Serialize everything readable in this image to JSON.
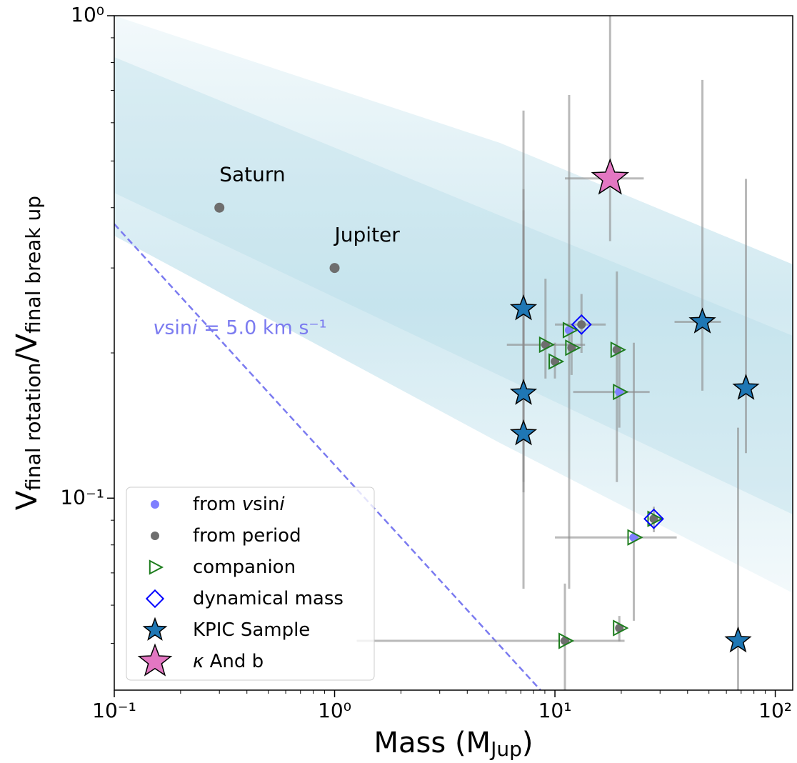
{
  "chart_data": {
    "type": "scatter",
    "xlabel": [
      {
        "text": "Mass (M",
        "sub": false
      },
      {
        "text": "Jup",
        "sub": true
      },
      {
        "text": ")",
        "sub": false
      }
    ],
    "ylabel": [
      {
        "text": "V",
        "sub": false
      },
      {
        "text": "final rotation",
        "sub": true
      },
      {
        "text": "/V",
        "sub": false
      },
      {
        "text": "final break up",
        "sub": true
      }
    ],
    "xlim": [
      0.1,
      120
    ],
    "ylim": [
      0.04,
      1
    ],
    "log_x": true,
    "log_y": true,
    "xticks": [
      {
        "value": 0.1,
        "label": "10⁻¹"
      },
      {
        "value": 1,
        "label": "10⁰"
      },
      {
        "value": 10,
        "label": "10¹"
      },
      {
        "value": 100,
        "label": "10²"
      }
    ],
    "yticks": [
      {
        "value": 0.1,
        "label": "10⁻¹"
      },
      {
        "value": 1,
        "label": "10⁰"
      }
    ],
    "planets": [
      {
        "name": "Saturn",
        "x": 0.3,
        "y": 0.4,
        "color": "#6e6e6e"
      },
      {
        "name": "Jupiter",
        "x": 1.0,
        "y": 0.3,
        "color": "#6e6e6e"
      }
    ],
    "vsini_line": {
      "x": [
        0.1,
        8.6
      ],
      "y": [
        0.37,
        0.04
      ],
      "color": "#7b7bf0",
      "label": [
        {
          "text": "v",
          "italic": true
        },
        {
          "text": "sin",
          "italic": false
        },
        {
          "text": "i",
          "italic": true
        },
        {
          "text": " = 5.0 km s⁻¹",
          "italic": false
        }
      ],
      "label_x": 0.15,
      "label_y": 0.225
    },
    "colors": {
      "vsini": "#7f7fff",
      "period": "#6e6e6e",
      "companion": "#1e7d1e",
      "dynamical": "#0000ff",
      "kpic": "#1f77b4",
      "kappa": "#e377c2",
      "error": "#8c8c8c"
    },
    "points": [
      {
        "x": 13.2,
        "y": 0.229,
        "y_range": [
          0.2,
          0.265
        ],
        "x_range": [
          10.0,
          17.0
        ],
        "method": "period",
        "companion": false,
        "dynamical": true
      },
      {
        "x": 11.6,
        "y": 0.223,
        "y_range": [
          0.0649,
          0.685
        ],
        "method": "vsini",
        "companion": true,
        "dynamical": false
      },
      {
        "x": 9.06,
        "y": 0.208,
        "y_range": [
          0.177,
          0.285
        ],
        "x_range": [
          6.05,
          13.7
        ],
        "method": "period",
        "companion": true,
        "dynamical": false
      },
      {
        "x": 11.9,
        "y": 0.205,
        "y_range": [
          0.18,
          0.23
        ],
        "method": "period",
        "companion": true,
        "dynamical": false
      },
      {
        "x": 10.0,
        "y": 0.192,
        "y_range": [
          0.177,
          0.21
        ],
        "method": "period",
        "companion": true,
        "dynamical": false
      },
      {
        "x": 19.1,
        "y": 0.203,
        "y_range": [
          0.108,
          0.295
        ],
        "method": "period",
        "companion": true,
        "dynamical": false
      },
      {
        "x": 19.6,
        "y": 0.166,
        "y_range": [
          0.14,
          0.2
        ],
        "x_range": [
          12.1,
          26.9
        ],
        "method": "vsini",
        "companion": true,
        "dynamical": false
      },
      {
        "x": 28.1,
        "y": 0.0906,
        "y_range": [
          0.085,
          0.096
        ],
        "method": "period",
        "companion": true,
        "dynamical": true
      },
      {
        "x": 22.8,
        "y": 0.0829,
        "y_range": [
          0.0557,
          0.21
        ],
        "x_range": [
          10.0,
          35.7
        ],
        "method": "vsini",
        "companion": true,
        "dynamical": false
      },
      {
        "x": 19.6,
        "y": 0.0538,
        "y_range": [
          0.0505,
          0.057
        ],
        "method": "period",
        "companion": true,
        "dynamical": false
      },
      {
        "x": 11.1,
        "y": 0.0506,
        "y_range": [
          0.04,
          0.0665
        ],
        "x_range": [
          1.26,
          20.7
        ],
        "method": "period",
        "companion": true,
        "dynamical": false
      }
    ],
    "kpic": [
      {
        "x": 7.2,
        "y": 0.247,
        "y_range": [
          0.0649,
          0.636
        ]
      },
      {
        "x": 7.2,
        "y": 0.165,
        "y_range": [
          0.1028,
          0.437
        ]
      },
      {
        "x": 7.2,
        "y": 0.136,
        "y_range": [
          0.108,
          0.395
        ]
      },
      {
        "x": 46.7,
        "y": 0.232,
        "y_range": [
          0.167,
          0.736
        ],
        "x_range": [
          34.9,
          56.7
        ]
      },
      {
        "x": 73.6,
        "y": 0.169,
        "y_range": [
          0.124,
          0.459
        ]
      },
      {
        "x": 67.8,
        "y": 0.0506,
        "y_range": [
          0.04,
          0.14
        ]
      }
    ],
    "kappa": {
      "x": 17.8,
      "y": 0.46,
      "y_range": [
        0.341,
        1.0
      ],
      "x_range": [
        11.1,
        25.3
      ]
    },
    "legend": {
      "loc": "lower left",
      "entries": [
        {
          "marker": "vsini",
          "label": [
            {
              "text": "from ",
              "italic": false
            },
            {
              "text": "v",
              "italic": true
            },
            {
              "text": "sin",
              "italic": false
            },
            {
              "text": "i",
              "italic": true
            }
          ]
        },
        {
          "marker": "period",
          "label": [
            {
              "text": "from period",
              "italic": false
            }
          ]
        },
        {
          "marker": "companion",
          "label": [
            {
              "text": "companion",
              "italic": false
            }
          ]
        },
        {
          "marker": "dynamical",
          "label": [
            {
              "text": "dynamical mass",
              "italic": false
            }
          ]
        },
        {
          "marker": "kpic",
          "label": [
            {
              "text": "KPIC Sample",
              "italic": false
            }
          ]
        },
        {
          "marker": "kappa",
          "label": [
            {
              "text": "κ",
              "italic": true
            },
            {
              "text": " And b",
              "italic": false
            }
          ]
        }
      ]
    }
  }
}
